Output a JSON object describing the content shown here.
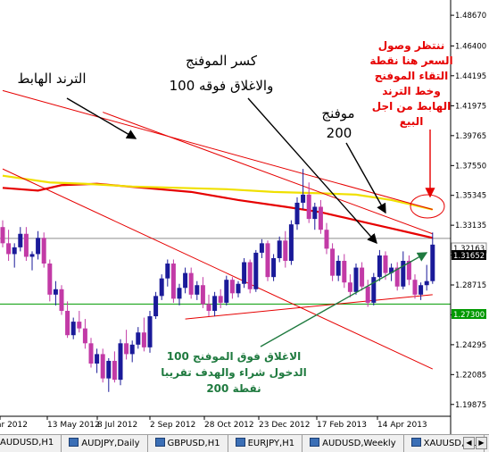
{
  "chart_data": {
    "type": "candlestick",
    "symbol": "AUDUSD",
    "timeframe": "Weekly",
    "price_axis": {
      "ylim": [
        1.19,
        1.498
      ],
      "ticks": [
        "1.48670",
        "1.46400",
        "1.44195",
        "1.41975",
        "1.39765",
        "1.37550",
        "1.35345",
        "1.33135",
        "1.30925",
        "1.28715",
        "1.26505",
        "1.24295",
        "1.22085",
        "1.19875"
      ],
      "current_bid": "1.31652",
      "levels": [
        {
          "label": "1.32163",
          "value": 1.32163,
          "color": "#8c8c8c"
        },
        {
          "label": "1.27300",
          "value": 1.273,
          "color": "#009900"
        }
      ]
    },
    "time_axis": {
      "labels": [
        "ar 2012",
        "13 May 2012",
        "8 Jul 2012",
        "2 Sep 2012",
        "28 Oct 2012",
        "23 Dec 2012",
        "17 Feb 2013",
        "14 Apr 2013"
      ]
    },
    "candles": [
      {
        "o": 1.33,
        "h": 1.335,
        "l": 1.315,
        "c": 1.318
      },
      {
        "o": 1.318,
        "h": 1.328,
        "l": 1.305,
        "c": 1.31
      },
      {
        "o": 1.31,
        "h": 1.318,
        "l": 1.3,
        "c": 1.315
      },
      {
        "o": 1.315,
        "h": 1.33,
        "l": 1.312,
        "c": 1.325
      },
      {
        "o": 1.325,
        "h": 1.33,
        "l": 1.305,
        "c": 1.308
      },
      {
        "o": 1.308,
        "h": 1.312,
        "l": 1.298,
        "c": 1.31
      },
      {
        "o": 1.31,
        "h": 1.327,
        "l": 1.306,
        "c": 1.322
      },
      {
        "o": 1.322,
        "h": 1.326,
        "l": 1.3,
        "c": 1.303
      },
      {
        "o": 1.303,
        "h": 1.306,
        "l": 1.275,
        "c": 1.28
      },
      {
        "o": 1.28,
        "h": 1.29,
        "l": 1.272,
        "c": 1.284
      },
      {
        "o": 1.284,
        "h": 1.287,
        "l": 1.265,
        "c": 1.268
      },
      {
        "o": 1.268,
        "h": 1.275,
        "l": 1.248,
        "c": 1.25
      },
      {
        "o": 1.25,
        "h": 1.263,
        "l": 1.247,
        "c": 1.26
      },
      {
        "o": 1.26,
        "h": 1.268,
        "l": 1.252,
        "c": 1.255
      },
      {
        "o": 1.255,
        "h": 1.262,
        "l": 1.24,
        "c": 1.244
      },
      {
        "o": 1.244,
        "h": 1.248,
        "l": 1.226,
        "c": 1.229
      },
      {
        "o": 1.229,
        "h": 1.24,
        "l": 1.222,
        "c": 1.236
      },
      {
        "o": 1.236,
        "h": 1.24,
        "l": 1.215,
        "c": 1.218
      },
      {
        "o": 1.218,
        "h": 1.233,
        "l": 1.208,
        "c": 1.231
      },
      {
        "o": 1.231,
        "h": 1.238,
        "l": 1.215,
        "c": 1.217
      },
      {
        "o": 1.217,
        "h": 1.247,
        "l": 1.213,
        "c": 1.244
      },
      {
        "o": 1.244,
        "h": 1.254,
        "l": 1.232,
        "c": 1.236
      },
      {
        "o": 1.236,
        "h": 1.246,
        "l": 1.23,
        "c": 1.243
      },
      {
        "o": 1.243,
        "h": 1.256,
        "l": 1.24,
        "c": 1.252
      },
      {
        "o": 1.252,
        "h": 1.263,
        "l": 1.238,
        "c": 1.241
      },
      {
        "o": 1.241,
        "h": 1.268,
        "l": 1.237,
        "c": 1.264
      },
      {
        "o": 1.264,
        "h": 1.282,
        "l": 1.262,
        "c": 1.279
      },
      {
        "o": 1.279,
        "h": 1.295,
        "l": 1.276,
        "c": 1.292
      },
      {
        "o": 1.292,
        "h": 1.306,
        "l": 1.286,
        "c": 1.303
      },
      {
        "o": 1.303,
        "h": 1.306,
        "l": 1.274,
        "c": 1.277
      },
      {
        "o": 1.277,
        "h": 1.288,
        "l": 1.272,
        "c": 1.285
      },
      {
        "o": 1.285,
        "h": 1.3,
        "l": 1.281,
        "c": 1.296
      },
      {
        "o": 1.296,
        "h": 1.3,
        "l": 1.277,
        "c": 1.28
      },
      {
        "o": 1.28,
        "h": 1.29,
        "l": 1.276,
        "c": 1.287
      },
      {
        "o": 1.287,
        "h": 1.293,
        "l": 1.27,
        "c": 1.273
      },
      {
        "o": 1.273,
        "h": 1.28,
        "l": 1.264,
        "c": 1.268
      },
      {
        "o": 1.268,
        "h": 1.282,
        "l": 1.264,
        "c": 1.279
      },
      {
        "o": 1.279,
        "h": 1.284,
        "l": 1.27,
        "c": 1.274
      },
      {
        "o": 1.274,
        "h": 1.294,
        "l": 1.272,
        "c": 1.291
      },
      {
        "o": 1.291,
        "h": 1.293,
        "l": 1.277,
        "c": 1.281
      },
      {
        "o": 1.281,
        "h": 1.29,
        "l": 1.278,
        "c": 1.288
      },
      {
        "o": 1.288,
        "h": 1.307,
        "l": 1.285,
        "c": 1.304
      },
      {
        "o": 1.304,
        "h": 1.306,
        "l": 1.281,
        "c": 1.284
      },
      {
        "o": 1.284,
        "h": 1.313,
        "l": 1.282,
        "c": 1.311
      },
      {
        "o": 1.311,
        "h": 1.321,
        "l": 1.307,
        "c": 1.318
      },
      {
        "o": 1.318,
        "h": 1.32,
        "l": 1.29,
        "c": 1.293
      },
      {
        "o": 1.293,
        "h": 1.31,
        "l": 1.29,
        "c": 1.307
      },
      {
        "o": 1.307,
        "h": 1.323,
        "l": 1.304,
        "c": 1.32
      },
      {
        "o": 1.32,
        "h": 1.327,
        "l": 1.3,
        "c": 1.305
      },
      {
        "o": 1.305,
        "h": 1.335,
        "l": 1.302,
        "c": 1.332
      },
      {
        "o": 1.332,
        "h": 1.352,
        "l": 1.328,
        "c": 1.348
      },
      {
        "o": 1.348,
        "h": 1.373,
        "l": 1.343,
        "c": 1.354
      },
      {
        "o": 1.354,
        "h": 1.363,
        "l": 1.333,
        "c": 1.336
      },
      {
        "o": 1.336,
        "h": 1.348,
        "l": 1.328,
        "c": 1.345
      },
      {
        "o": 1.345,
        "h": 1.35,
        "l": 1.325,
        "c": 1.328
      },
      {
        "o": 1.328,
        "h": 1.333,
        "l": 1.31,
        "c": 1.314
      },
      {
        "o": 1.314,
        "h": 1.318,
        "l": 1.29,
        "c": 1.294
      },
      {
        "o": 1.294,
        "h": 1.309,
        "l": 1.29,
        "c": 1.305
      },
      {
        "o": 1.305,
        "h": 1.31,
        "l": 1.285,
        "c": 1.289
      },
      {
        "o": 1.289,
        "h": 1.295,
        "l": 1.278,
        "c": 1.282
      },
      {
        "o": 1.282,
        "h": 1.303,
        "l": 1.28,
        "c": 1.3
      },
      {
        "o": 1.3,
        "h": 1.304,
        "l": 1.283,
        "c": 1.286
      },
      {
        "o": 1.286,
        "h": 1.291,
        "l": 1.271,
        "c": 1.274
      },
      {
        "o": 1.274,
        "h": 1.296,
        "l": 1.272,
        "c": 1.293
      },
      {
        "o": 1.293,
        "h": 1.313,
        "l": 1.29,
        "c": 1.309
      },
      {
        "o": 1.309,
        "h": 1.312,
        "l": 1.291,
        "c": 1.296
      },
      {
        "o": 1.296,
        "h": 1.303,
        "l": 1.29,
        "c": 1.3
      },
      {
        "o": 1.3,
        "h": 1.304,
        "l": 1.283,
        "c": 1.286
      },
      {
        "o": 1.286,
        "h": 1.312,
        "l": 1.284,
        "c": 1.305
      },
      {
        "o": 1.305,
        "h": 1.309,
        "l": 1.287,
        "c": 1.291
      },
      {
        "o": 1.291,
        "h": 1.295,
        "l": 1.277,
        "c": 1.28
      },
      {
        "o": 1.28,
        "h": 1.289,
        "l": 1.276,
        "c": 1.287
      },
      {
        "o": 1.287,
        "h": 1.302,
        "l": 1.283,
        "c": 1.29
      },
      {
        "o": 1.29,
        "h": 1.326,
        "l": 1.288,
        "c": 1.317
      }
    ],
    "moving_averages": [
      {
        "name": "MA100",
        "color": "#e60000",
        "points": [
          [
            0,
            1.359
          ],
          [
            6,
            1.357
          ],
          [
            10,
            1.361
          ],
          [
            16,
            1.362
          ],
          [
            24,
            1.359
          ],
          [
            32,
            1.356
          ],
          [
            40,
            1.35
          ],
          [
            48,
            1.345
          ],
          [
            54,
            1.341
          ],
          [
            58,
            1.337
          ],
          [
            62,
            1.333
          ],
          [
            66,
            1.329
          ],
          [
            70,
            1.325
          ],
          [
            73,
            1.322
          ]
        ]
      },
      {
        "name": "MA200",
        "color": "#f0e000",
        "points": [
          [
            0,
            1.368
          ],
          [
            8,
            1.363
          ],
          [
            14,
            1.362
          ],
          [
            22,
            1.36
          ],
          [
            30,
            1.359
          ],
          [
            38,
            1.358
          ],
          [
            46,
            1.356
          ],
          [
            54,
            1.355
          ],
          [
            60,
            1.354
          ],
          [
            66,
            1.35
          ],
          [
            70,
            1.346
          ],
          [
            73,
            1.343
          ]
        ]
      }
    ],
    "trendlines": [
      {
        "color": "#e60000",
        "from": [
          0,
          1.431
        ],
        "to": [
          73,
          1.343
        ]
      },
      {
        "color": "#e60000",
        "from": [
          0,
          1.373
        ],
        "to": [
          73,
          1.225
        ]
      },
      {
        "color": "#e60000",
        "from": [
          17,
          1.415
        ],
        "to": [
          73,
          1.325
        ]
      },
      {
        "color": "#e60000",
        "from": [
          31,
          1.262
        ],
        "to": [
          73,
          1.28
        ]
      }
    ],
    "colors": {
      "bull": "#1a1a99",
      "bear": "#c23aa6",
      "accent_red": "#e60000",
      "accent_green": "#1f7a3f"
    }
  },
  "annotations": {
    "downtrend": "الترند الهابط",
    "break_ma_line1": "كسر الموفنج",
    "break_ma_line2": "100 والاغلاق فوقه",
    "ma200_line1": "موفنج",
    "ma200_line2": "200",
    "wait_note": [
      "ننتظر وصول",
      "السعر هنا نقطة",
      "التقاء الموفنج",
      "وخط الترند",
      "الهابط من اجل",
      "البيع"
    ],
    "entry_note": [
      "الاغلاق فوق الموفنج 100",
      "الدخول شراء والهدف تقريبا",
      "200  نقطة"
    ]
  },
  "tabs": [
    {
      "label": "AUDUSD,H1"
    },
    {
      "label": "AUDJPY,Daily"
    },
    {
      "label": "GBPUSD,H1"
    },
    {
      "label": "EURJPY,H1"
    },
    {
      "label": "AUDUSD,Weekly"
    },
    {
      "label": "XAUUSD,H1"
    }
  ]
}
